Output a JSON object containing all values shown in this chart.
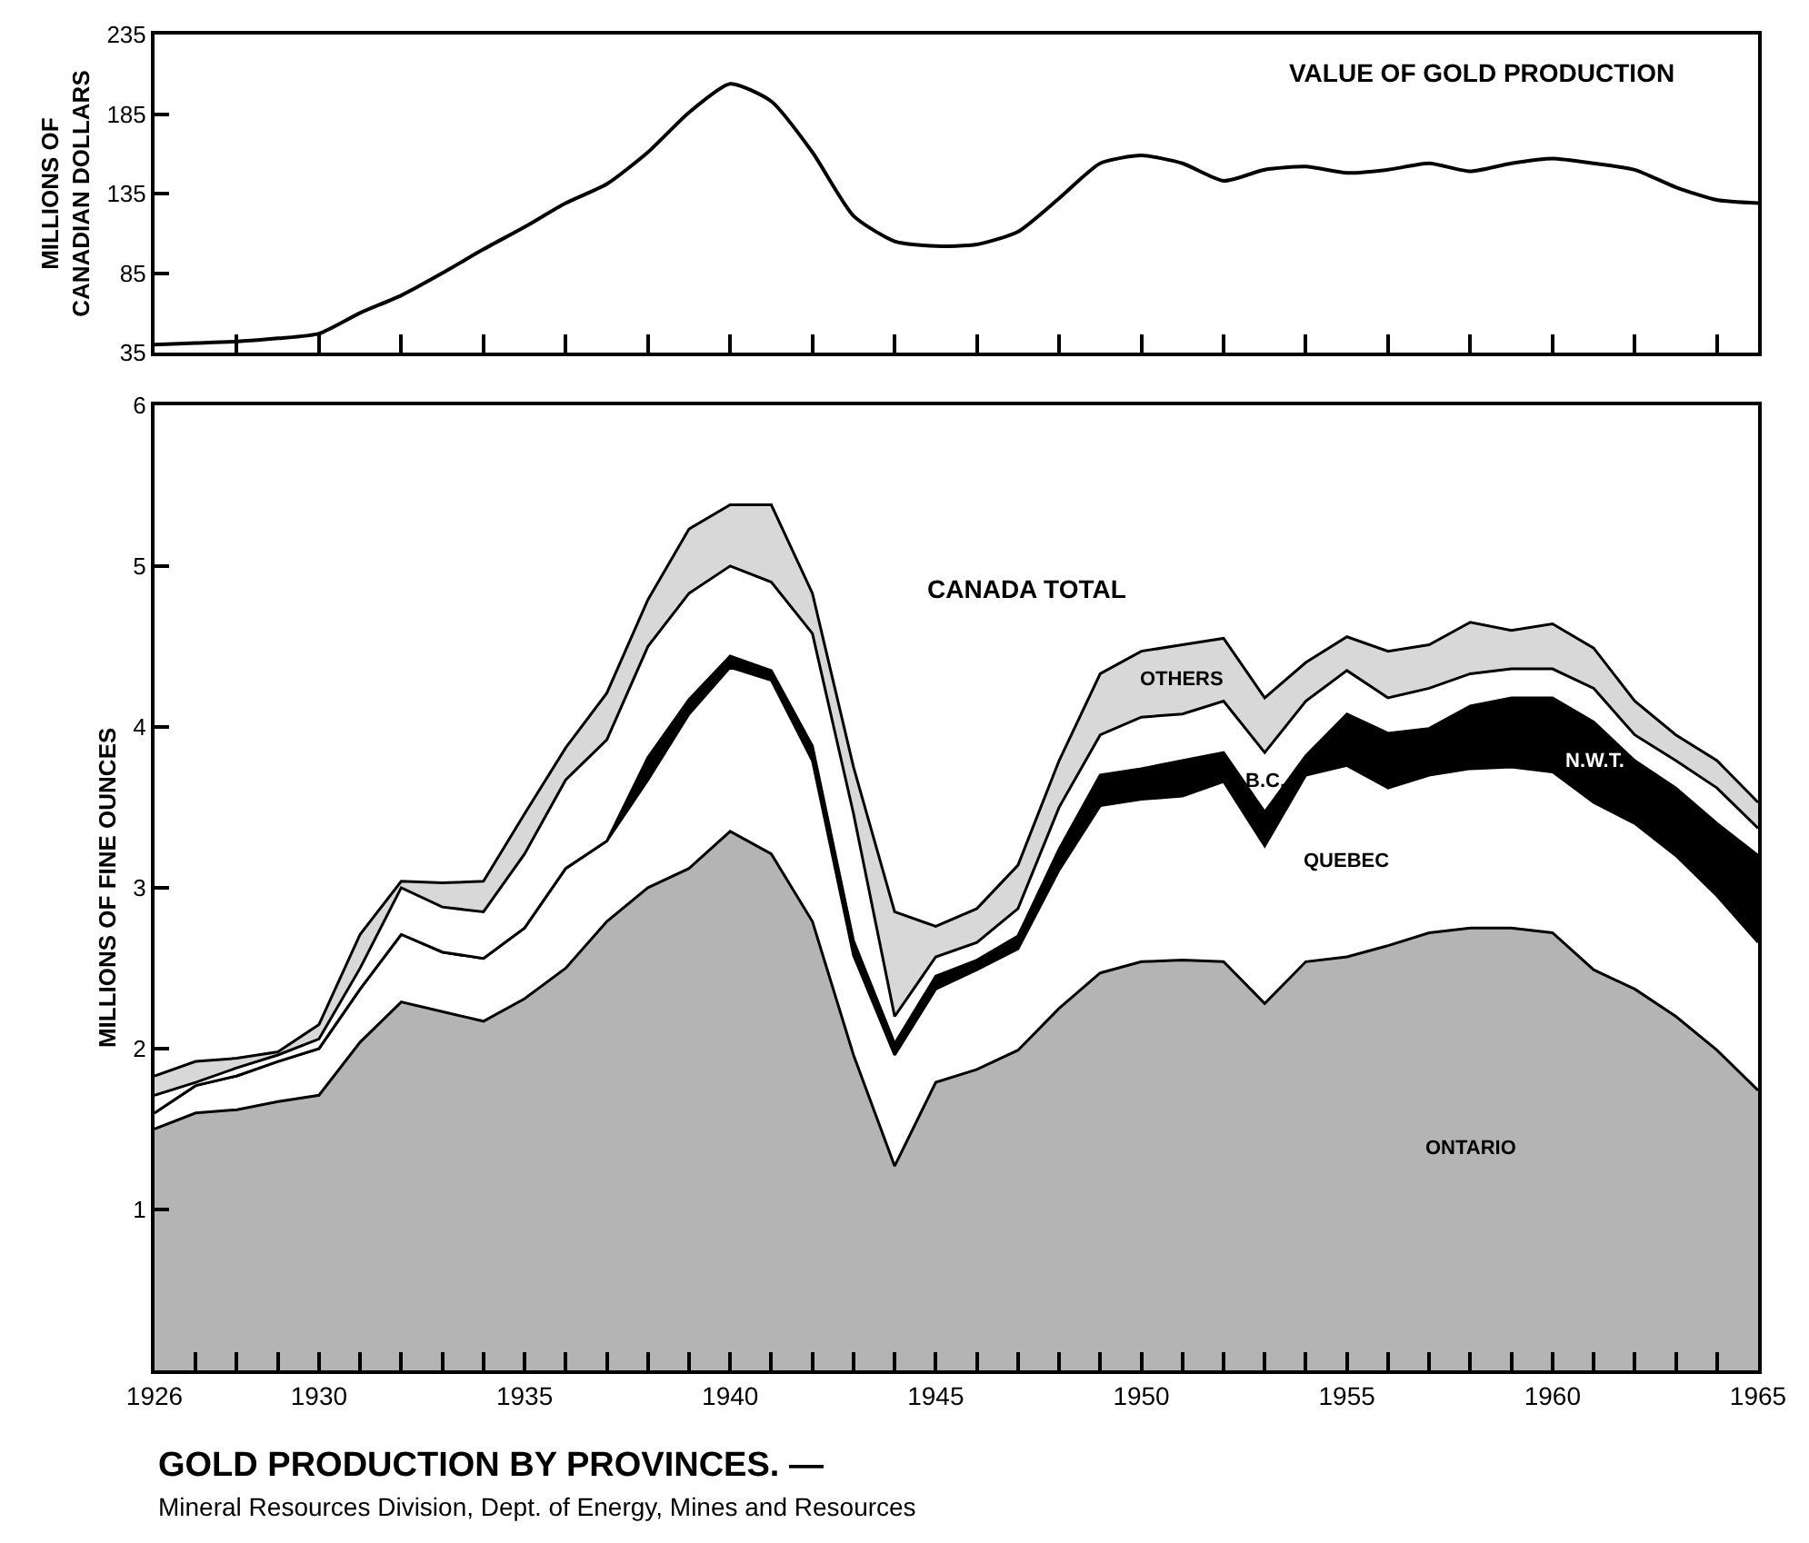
{
  "chart_data": [
    {
      "type": "line",
      "title": "VALUE OF GOLD PRODUCTION",
      "ylabel": "MILLIONS OF\nCANADIAN DOLLARS",
      "x": [
        1926,
        1927,
        1928,
        1929,
        1930,
        1931,
        1932,
        1933,
        1934,
        1935,
        1936,
        1937,
        1938,
        1939,
        1940,
        1941,
        1942,
        1943,
        1944,
        1945,
        1946,
        1947,
        1948,
        1949,
        1950,
        1951,
        1952,
        1953,
        1954,
        1955,
        1956,
        1957,
        1958,
        1959,
        1960,
        1961,
        1962,
        1963,
        1964,
        1965
      ],
      "series": [
        {
          "color": "#000000",
          "values": [
            40,
            41,
            42,
            44,
            47,
            60,
            71,
            85,
            100,
            114,
            129,
            141,
            161,
            186,
            204,
            193,
            161,
            121,
            105,
            102,
            103,
            111,
            132,
            154,
            159,
            154,
            143,
            150,
            152,
            148,
            150,
            154,
            149,
            154,
            157,
            154,
            150,
            139,
            131,
            129
          ]
        }
      ],
      "xlim": [
        1926,
        1965
      ],
      "xticks": [
        {
          "value": 1926,
          "label": null
        },
        {
          "value": 1928,
          "label": null
        },
        {
          "value": 1930,
          "label": null
        },
        {
          "value": 1932,
          "label": null
        },
        {
          "value": 1934,
          "label": null
        },
        {
          "value": 1936,
          "label": null
        },
        {
          "value": 1938,
          "label": null
        },
        {
          "value": 1940,
          "label": null
        },
        {
          "value": 1942,
          "label": null
        },
        {
          "value": 1944,
          "label": null
        },
        {
          "value": 1946,
          "label": null
        },
        {
          "value": 1948,
          "label": null
        },
        {
          "value": 1950,
          "label": null
        },
        {
          "value": 1952,
          "label": null
        },
        {
          "value": 1954,
          "label": null
        },
        {
          "value": 1956,
          "label": null
        },
        {
          "value": 1958,
          "label": null
        },
        {
          "value": 1960,
          "label": null
        },
        {
          "value": 1962,
          "label": null
        },
        {
          "value": 1964,
          "label": null
        }
      ],
      "ylim": [
        35,
        235
      ],
      "yticks": [
        35,
        85,
        135,
        185,
        235
      ],
      "tick_labels": "y",
      "grid": false,
      "legend": false,
      "marker": "none",
      "line_style": "solid"
    },
    {
      "type": "area",
      "stacked": true,
      "title": "GOLD PRODUCTION BY PROVINCES. —",
      "subtitle": "Mineral Resources Division, Dept. of Energy, Mines and Resources",
      "ylabel": "MILLIONS OF FINE OUNCES",
      "x": [
        1926,
        1927,
        1928,
        1929,
        1930,
        1931,
        1932,
        1933,
        1934,
        1935,
        1936,
        1937,
        1938,
        1939,
        1940,
        1941,
        1942,
        1943,
        1944,
        1945,
        1946,
        1947,
        1948,
        1949,
        1950,
        1951,
        1952,
        1953,
        1954,
        1955,
        1956,
        1957,
        1958,
        1959,
        1960,
        1961,
        1962,
        1963,
        1964,
        1965
      ],
      "series": [
        {
          "name": "ONTARIO",
          "color": "#b4b4b4",
          "values": [
            1.5,
            1.6,
            1.62,
            1.67,
            1.71,
            2.04,
            2.29,
            2.23,
            2.17,
            2.31,
            2.5,
            2.79,
            3.0,
            3.12,
            3.35,
            3.21,
            2.79,
            1.96,
            1.27,
            1.79,
            1.87,
            1.99,
            2.25,
            2.47,
            2.54,
            2.55,
            2.54,
            2.28,
            2.54,
            2.57,
            2.64,
            2.72,
            2.75,
            2.75,
            2.72,
            2.49,
            2.37,
            2.2,
            1.99,
            1.74
          ]
        },
        {
          "name": "QUEBEC",
          "color": "#ffffff",
          "values": [
            0.1,
            0.17,
            0.21,
            0.25,
            0.29,
            0.33,
            0.42,
            0.37,
            0.39,
            0.44,
            0.62,
            0.5,
            0.67,
            0.96,
            1.02,
            1.08,
            1.0,
            0.62,
            0.69,
            0.58,
            0.62,
            0.63,
            0.86,
            1.04,
            1.01,
            1.02,
            1.12,
            0.98,
            1.16,
            1.19,
            0.98,
            0.98,
            0.99,
            1.0,
            1.0,
            1.04,
            1.03,
            1.0,
            0.96,
            0.92
          ]
        },
        {
          "name": "N.W.T.",
          "color": "#000000",
          "values": [
            0,
            0,
            0,
            0,
            0,
            0,
            0,
            0,
            0,
            0,
            0,
            0,
            0.14,
            0.09,
            0.07,
            0.06,
            0.09,
            0.09,
            0.07,
            0.08,
            0.06,
            0.08,
            0.13,
            0.19,
            0.19,
            0.22,
            0.18,
            0.21,
            0.12,
            0.32,
            0.34,
            0.29,
            0.39,
            0.43,
            0.46,
            0.5,
            0.39,
            0.42,
            0.45,
            0.54
          ]
        },
        {
          "name": "B.C.",
          "color": "#ffffff",
          "values": [
            0.11,
            0.02,
            0.05,
            0.04,
            0.06,
            0.13,
            0.29,
            0.28,
            0.29,
            0.46,
            0.55,
            0.63,
            0.69,
            0.66,
            0.56,
            0.55,
            0.7,
            0.79,
            0.17,
            0.12,
            0.11,
            0.17,
            0.26,
            0.25,
            0.32,
            0.29,
            0.32,
            0.37,
            0.34,
            0.27,
            0.22,
            0.25,
            0.2,
            0.18,
            0.18,
            0.21,
            0.16,
            0.17,
            0.22,
            0.17
          ]
        },
        {
          "name": "OTHERS",
          "color": "#d8d8d8",
          "values": [
            0.12,
            0.13,
            0.06,
            0.02,
            0.09,
            0.21,
            0.04,
            0.15,
            0.19,
            0.25,
            0.2,
            0.29,
            0.29,
            0.4,
            0.38,
            0.48,
            0.25,
            0.29,
            0.65,
            0.19,
            0.21,
            0.27,
            0.29,
            0.38,
            0.41,
            0.43,
            0.39,
            0.34,
            0.24,
            0.21,
            0.29,
            0.27,
            0.32,
            0.24,
            0.28,
            0.25,
            0.21,
            0.16,
            0.17,
            0.16
          ]
        }
      ],
      "annotations": [
        "CANADA TOTAL"
      ],
      "xlim": [
        1926,
        1965
      ],
      "xticks": [
        1926,
        {
          "value": 1927,
          "label": null
        },
        {
          "value": 1928,
          "label": null
        },
        {
          "value": 1929,
          "label": null
        },
        1930,
        {
          "value": 1931,
          "label": null
        },
        {
          "value": 1932,
          "label": null
        },
        {
          "value": 1933,
          "label": null
        },
        {
          "value": 1934,
          "label": null
        },
        1935,
        {
          "value": 1936,
          "label": null
        },
        {
          "value": 1937,
          "label": null
        },
        {
          "value": 1938,
          "label": null
        },
        {
          "value": 1939,
          "label": null
        },
        1940,
        {
          "value": 1941,
          "label": null
        },
        {
          "value": 1942,
          "label": null
        },
        {
          "value": 1943,
          "label": null
        },
        {
          "value": 1944,
          "label": null
        },
        1945,
        {
          "value": 1946,
          "label": null
        },
        {
          "value": 1947,
          "label": null
        },
        {
          "value": 1948,
          "label": null
        },
        {
          "value": 1949,
          "label": null
        },
        1950,
        {
          "value": 1951,
          "label": null
        },
        {
          "value": 1952,
          "label": null
        },
        {
          "value": 1953,
          "label": null
        },
        {
          "value": 1954,
          "label": null
        },
        1955,
        {
          "value": 1956,
          "label": null
        },
        {
          "value": 1957,
          "label": null
        },
        {
          "value": 1958,
          "label": null
        },
        {
          "value": 1959,
          "label": null
        },
        1960,
        {
          "value": 1961,
          "label": null
        },
        {
          "value": 1962,
          "label": null
        },
        {
          "value": 1963,
          "label": null
        },
        {
          "value": 1964,
          "label": null
        },
        1965
      ],
      "ylim": [
        0,
        6
      ],
      "yticks": [
        1,
        2,
        3,
        4,
        5,
        6
      ],
      "grid": false,
      "legend": false,
      "line_style": "solid"
    }
  ]
}
